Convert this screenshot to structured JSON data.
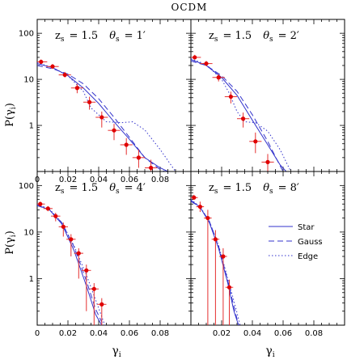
{
  "figure": {
    "title": "OCDM",
    "ylabel": "P(γ_i)",
    "xlabel": "γ_i"
  },
  "chart_data": [
    {
      "type": "line",
      "panel": "top-left",
      "annotation": {
        "zs_label": "z_s",
        "zs_value": "= 1.5",
        "theta_label": "θ_s",
        "theta_value": "= 1′"
      },
      "x_scale": "linear",
      "y_scale": "log",
      "xlim": [
        0,
        0.1
      ],
      "ylim": [
        0.1,
        200
      ],
      "x_ticks": [
        "0",
        "0.02",
        "0.04",
        "0.06",
        "0.08"
      ],
      "y_ticks": [
        "1",
        "10",
        "100"
      ],
      "series": [
        {
          "name": "Star",
          "style": "solid",
          "color": "#3333cc",
          "x": [
            0,
            0.01,
            0.02,
            0.03,
            0.04,
            0.05,
            0.06,
            0.07,
            0.08,
            0.085
          ],
          "y": [
            22,
            18,
            12,
            6.5,
            3,
            1.2,
            0.5,
            0.2,
            0.12,
            0.1
          ]
        },
        {
          "name": "Gauss",
          "style": "dashed",
          "color": "#3333cc",
          "x": [
            0,
            0.01,
            0.02,
            0.03,
            0.04,
            0.05,
            0.06,
            0.07,
            0.08,
            0.083
          ],
          "y": [
            20,
            17,
            13,
            8,
            3.8,
            1.5,
            0.55,
            0.2,
            0.11,
            0.1
          ]
        },
        {
          "name": "Edge",
          "style": "dotted",
          "color": "#3333cc",
          "x": [
            0,
            0.01,
            0.02,
            0.03,
            0.035,
            0.045,
            0.055,
            0.062,
            0.07,
            0.08,
            0.09
          ],
          "y": [
            23,
            18,
            12,
            5.5,
            2.4,
            1.2,
            1.15,
            1.2,
            0.8,
            0.3,
            0.1
          ]
        }
      ],
      "points": {
        "x": [
          0.0025,
          0.01,
          0.018,
          0.026,
          0.034,
          0.042,
          0.05,
          0.058,
          0.066,
          0.074
        ],
        "y": [
          24,
          19,
          12.5,
          6.5,
          3.2,
          1.5,
          0.78,
          0.38,
          0.2,
          0.12
        ],
        "xerr": 0.004,
        "yerr_low": [
          2,
          2,
          1.5,
          1.5,
          1,
          0.6,
          0.3,
          0.15,
          0.08,
          0.02
        ],
        "yerr_high": [
          3,
          2.5,
          2,
          1.5,
          1,
          0.5,
          0.3,
          0.15,
          0.1,
          0.06
        ]
      }
    },
    {
      "type": "line",
      "panel": "top-right",
      "annotation": {
        "zs_label": "z_s",
        "zs_value": "= 1.5",
        "theta_label": "θ_s",
        "theta_value": "= 2′"
      },
      "x_scale": "linear",
      "y_scale": "log",
      "xlim": [
        0,
        0.1
      ],
      "ylim": [
        0.1,
        200
      ],
      "x_ticks": [],
      "y_ticks": [],
      "series": [
        {
          "name": "Star",
          "style": "solid",
          "color": "#3333cc",
          "x": [
            0,
            0.01,
            0.02,
            0.03,
            0.04,
            0.05,
            0.058,
            0.062
          ],
          "y": [
            27,
            20,
            11,
            4.5,
            1.3,
            0.38,
            0.14,
            0.1
          ]
        },
        {
          "name": "Gauss",
          "style": "dashed",
          "color": "#3333cc",
          "x": [
            0,
            0.01,
            0.02,
            0.03,
            0.04,
            0.05,
            0.056,
            0.06
          ],
          "y": [
            25,
            20,
            12,
            5.5,
            1.7,
            0.45,
            0.18,
            0.1
          ]
        },
        {
          "name": "Edge",
          "style": "dotted",
          "color": "#3333cc",
          "x": [
            0,
            0.01,
            0.02,
            0.025,
            0.03,
            0.035,
            0.042,
            0.05,
            0.058,
            0.065
          ],
          "y": [
            28,
            21,
            10,
            5,
            2,
            1.2,
            1.15,
            0.75,
            0.3,
            0.1
          ]
        }
      ],
      "points": {
        "x": [
          0.0025,
          0.01,
          0.018,
          0.026,
          0.034,
          0.042,
          0.05
        ],
        "y": [
          30,
          22,
          11,
          4.2,
          1.4,
          0.45,
          0.16
        ],
        "xerr": 0.004,
        "yerr_low": [
          3,
          2.5,
          2,
          1.2,
          0.5,
          0.2,
          0.06
        ],
        "yerr_high": [
          4,
          3,
          2,
          1.2,
          0.5,
          0.25,
          0.08
        ]
      }
    },
    {
      "type": "line",
      "panel": "bottom-left",
      "annotation": {
        "zs_label": "z_s",
        "zs_value": "= 1.5",
        "theta_label": "θ_s",
        "theta_value": "= 4′"
      },
      "x_scale": "linear",
      "y_scale": "log",
      "xlim": [
        0,
        0.1
      ],
      "ylim": [
        0.1,
        200
      ],
      "x_ticks": [
        "0",
        "0.02",
        "0.04",
        "0.06",
        "0.08"
      ],
      "y_ticks": [
        "1",
        "10",
        "100"
      ],
      "series": [
        {
          "name": "Star",
          "style": "solid",
          "color": "#3333cc",
          "x": [
            0,
            0.008,
            0.016,
            0.024,
            0.032,
            0.038,
            0.042
          ],
          "y": [
            38,
            30,
            15,
            4,
            0.7,
            0.17,
            0.1
          ]
        },
        {
          "name": "Gauss",
          "style": "dashed",
          "color": "#3333cc",
          "x": [
            0,
            0.008,
            0.016,
            0.024,
            0.032,
            0.038,
            0.043
          ],
          "y": [
            37,
            30,
            16,
            4.8,
            0.9,
            0.22,
            0.1
          ]
        },
        {
          "name": "Edge",
          "style": "dotted",
          "color": "#3333cc",
          "x": [
            0,
            0.008,
            0.016,
            0.024,
            0.032,
            0.038,
            0.044
          ],
          "y": [
            40,
            31,
            16,
            5,
            1.2,
            0.35,
            0.1
          ]
        }
      ],
      "points": {
        "x": [
          0.002,
          0.007,
          0.012,
          0.017,
          0.022,
          0.027,
          0.032,
          0.037,
          0.042
        ],
        "y": [
          40,
          32,
          22,
          13,
          7,
          3.5,
          1.5,
          0.6,
          0.28
        ],
        "xerr": 0.003,
        "yerr_low": [
          4,
          4,
          5,
          5,
          4,
          2.5,
          1.3,
          0.5,
          0.25
        ],
        "yerr_high": [
          5,
          4,
          4,
          3,
          2,
          1,
          0.5,
          0.2,
          0.1
        ]
      }
    },
    {
      "type": "line",
      "panel": "bottom-right",
      "annotation": {
        "zs_label": "z_s",
        "zs_value": "= 1.5",
        "theta_label": "θ_s",
        "theta_value": "= 8′"
      },
      "x_scale": "linear",
      "y_scale": "log",
      "xlim": [
        0,
        0.1
      ],
      "ylim": [
        0.1,
        200
      ],
      "x_ticks": [
        "0.02",
        "0.04",
        "0.06",
        "0.08"
      ],
      "y_ticks": [],
      "legend": {
        "placement": "right",
        "entries": [
          "Star",
          "Gauss",
          "Edge"
        ]
      },
      "series": [
        {
          "name": "Star",
          "style": "solid",
          "color": "#3333cc",
          "x": [
            0,
            0.006,
            0.012,
            0.018,
            0.024,
            0.028,
            0.031
          ],
          "y": [
            48,
            34,
            16,
            4.5,
            0.8,
            0.2,
            0.1
          ]
        },
        {
          "name": "Gauss",
          "style": "dashed",
          "color": "#3333cc",
          "x": [
            0,
            0.006,
            0.012,
            0.018,
            0.024,
            0.028,
            0.031
          ],
          "y": [
            46,
            34,
            17,
            5,
            0.9,
            0.25,
            0.1
          ]
        },
        {
          "name": "Edge",
          "style": "dotted",
          "color": "#3333cc",
          "x": [
            0,
            0.006,
            0.012,
            0.018,
            0.024,
            0.029,
            0.032
          ],
          "y": [
            50,
            35,
            17,
            5.2,
            1,
            0.25,
            0.1
          ]
        }
      ],
      "points": {
        "x": [
          0.002,
          0.006,
          0.011,
          0.016,
          0.021,
          0.025
        ],
        "y": [
          55,
          35,
          20,
          7,
          3,
          0.65
        ],
        "xerr": 0.0025,
        "yerr_low": [
          5,
          8,
          19.9,
          6.9,
          2.9,
          0.55
        ],
        "yerr_high": [
          8,
          10,
          10,
          4,
          1.5,
          0.3
        ]
      }
    }
  ]
}
